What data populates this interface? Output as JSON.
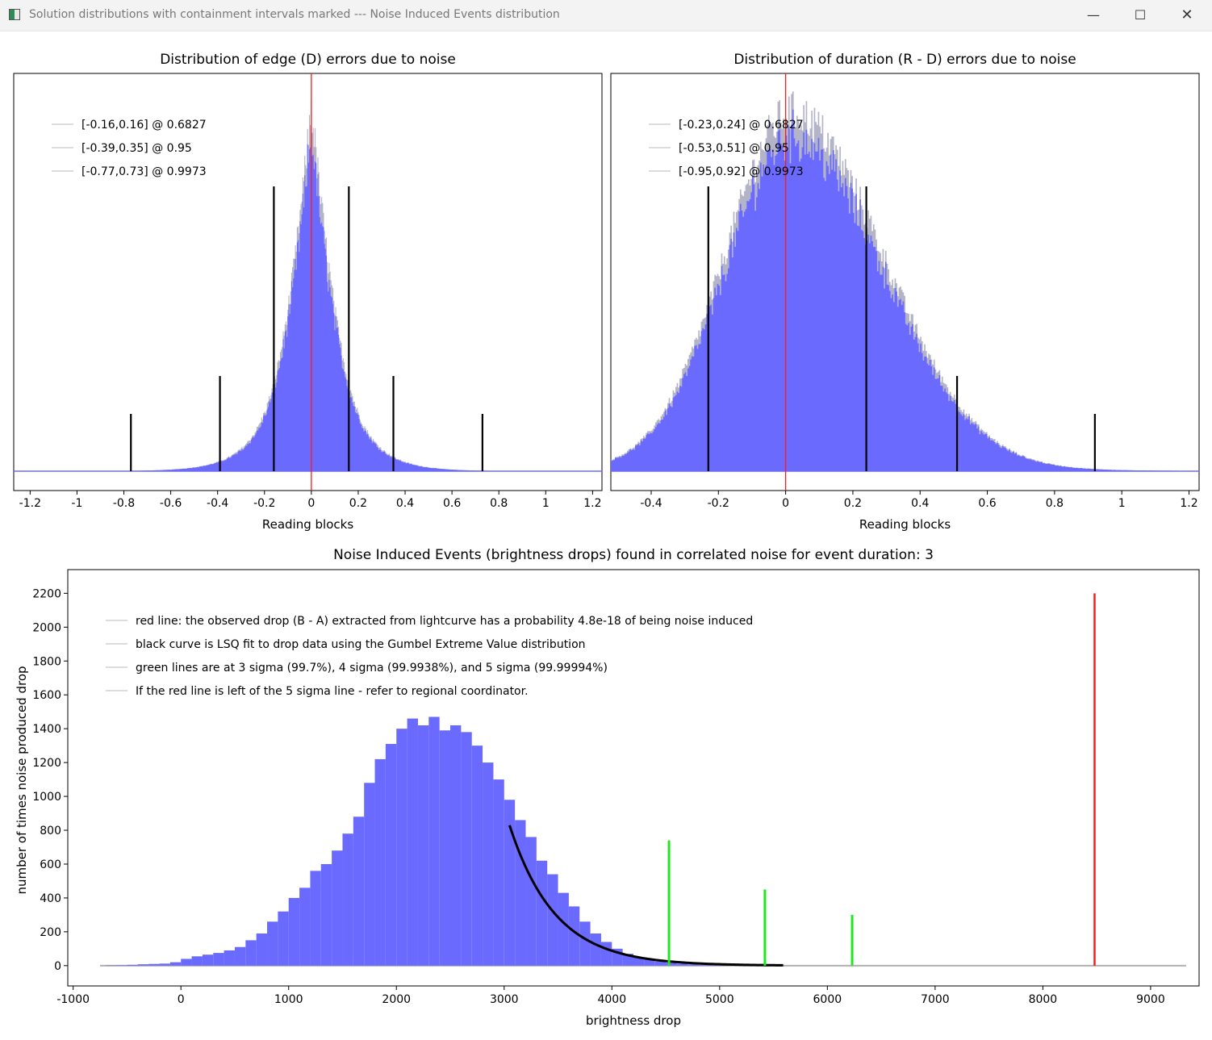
{
  "window": {
    "title": "Solution distributions with containment intervals marked --- Noise Induced Events distribution",
    "controls": {
      "minimize": "—",
      "maximize": "☐",
      "close": "✕"
    }
  },
  "colors": {
    "histogram_fill": "#6a6aff",
    "histogram_edge": "#b4b4c8",
    "marker": "#ff1a1a",
    "interval_line": "#000000",
    "sigma_line": "#22e622",
    "fit_curve": "#000000"
  },
  "chart_data": [
    {
      "type": "bar",
      "title": "Distribution of edge (D) errors due to noise",
      "xlabel": "Reading blocks",
      "ylabel": "",
      "xlim": [
        -1.27,
        1.24
      ],
      "x_ticks": [
        "-1.2",
        "-1",
        "-0.8",
        "-0.6",
        "-0.4",
        "-0.2",
        "0",
        "0.2",
        "0.4",
        "0.6",
        "0.8",
        "1",
        "1.2"
      ],
      "distribution": {
        "shape": "laplace-like, peaked at 0",
        "center": 0,
        "scale": 0.115,
        "peak_relative": 1.0
      },
      "marker_x": 0,
      "legend": {
        "position": "top-left",
        "entries": [
          "[-0.16,0.16] @ 0.6827",
          "[-0.39,0.35] @ 0.95",
          "[-0.77,0.73] @ 0.9973"
        ]
      },
      "intervals": [
        {
          "lo": -0.16,
          "hi": 0.16,
          "level": 0.6827
        },
        {
          "lo": -0.39,
          "hi": 0.35,
          "level": 0.95
        },
        {
          "lo": -0.77,
          "hi": 0.73,
          "level": 0.9973
        }
      ],
      "grid": false
    },
    {
      "type": "bar",
      "title": "Distribution of duration (R - D) errors due to noise",
      "xlabel": "Reading blocks",
      "ylabel": "",
      "xlim": [
        -0.52,
        1.23
      ],
      "x_ticks": [
        "-0.4",
        "-0.2",
        "0",
        "0.2",
        "0.4",
        "0.6",
        "0.8",
        "1",
        "1.2"
      ],
      "distribution": {
        "shape": "skewed, peak near 0.02",
        "center": 0.02,
        "scale_left": 0.2,
        "scale_right": 0.27,
        "peak_relative": 0.98
      },
      "marker_x": 0,
      "legend": {
        "position": "top-left",
        "entries": [
          "[-0.23,0.24] @ 0.6827",
          "[-0.53,0.51] @ 0.95",
          "[-0.95,0.92] @ 0.9973"
        ]
      },
      "intervals": [
        {
          "lo": -0.23,
          "hi": 0.24,
          "level": 0.6827
        },
        {
          "lo": -0.53,
          "hi": 0.51,
          "level": 0.95
        },
        {
          "lo": -0.95,
          "hi": 0.92,
          "level": 0.9973
        }
      ],
      "grid": false
    },
    {
      "type": "bar",
      "title": "Noise Induced Events (brightness drops) found in correlated noise for event duration: 3",
      "xlabel": "brightness drop",
      "ylabel": "number of times noise produced drop",
      "xlim": [
        -1050,
        9450
      ],
      "ylim": [
        -120,
        2340
      ],
      "x_ticks": [
        -1000,
        0,
        1000,
        2000,
        3000,
        4000,
        5000,
        6000,
        7000,
        8000,
        9000
      ],
      "y_ticks": [
        0,
        200,
        400,
        600,
        800,
        1000,
        1200,
        1400,
        1600,
        1800,
        2000,
        2200
      ],
      "histogram": {
        "bin_width": 100,
        "bin_starts": [
          -700,
          -600,
          -500,
          -400,
          -300,
          -200,
          -100,
          0,
          100,
          200,
          300,
          400,
          500,
          600,
          700,
          800,
          900,
          1000,
          1100,
          1200,
          1300,
          1400,
          1500,
          1600,
          1700,
          1800,
          1900,
          2000,
          2100,
          2200,
          2300,
          2400,
          2500,
          2600,
          2700,
          2800,
          2900,
          3000,
          3100,
          3200,
          3300,
          3400,
          3500,
          3600,
          3700,
          3800,
          3900,
          4000,
          4100,
          4200,
          4300,
          4400,
          4500,
          4600,
          4700,
          4800,
          4900,
          5000,
          5100,
          5200,
          5300,
          5400,
          5500
        ],
        "counts": [
          2,
          3,
          5,
          8,
          10,
          12,
          20,
          40,
          55,
          65,
          75,
          90,
          110,
          150,
          190,
          260,
          320,
          400,
          460,
          560,
          600,
          680,
          780,
          880,
          1080,
          1220,
          1310,
          1400,
          1460,
          1420,
          1470,
          1390,
          1420,
          1380,
          1300,
          1200,
          1100,
          980,
          860,
          760,
          620,
          540,
          430,
          350,
          260,
          190,
          140,
          100,
          70,
          50,
          35,
          25,
          18,
          12,
          8,
          5,
          4,
          3,
          2,
          1,
          1,
          1,
          1
        ]
      },
      "baseline_extent": [
        -750,
        9330
      ],
      "fit_curve": {
        "label": "Gumbel Extreme Value fit",
        "x_start": 3050,
        "x_end": 5600,
        "y_at_start": 830
      },
      "observed_drop": {
        "x": 8480,
        "height": 2200
      },
      "sigma_lines": [
        {
          "x": 4530,
          "height": 740,
          "label": "3 sigma"
        },
        {
          "x": 5420,
          "height": 450,
          "label": "4 sigma"
        },
        {
          "x": 6230,
          "height": 300,
          "label": "5 sigma"
        }
      ],
      "legend": {
        "position": "top-left",
        "entries": [
          "red line: the observed drop (B - A) extracted from lightcurve has a probability 4.8e-18 of being noise induced",
          "black curve is LSQ fit to drop data using the Gumbel Extreme Value distribution",
          "green lines are at 3 sigma (99.7%), 4 sigma (99.9938%), and 5 sigma (99.99994%)",
          "If the red line is left of the 5 sigma line - refer to regional coordinator."
        ]
      },
      "grid": false
    }
  ]
}
